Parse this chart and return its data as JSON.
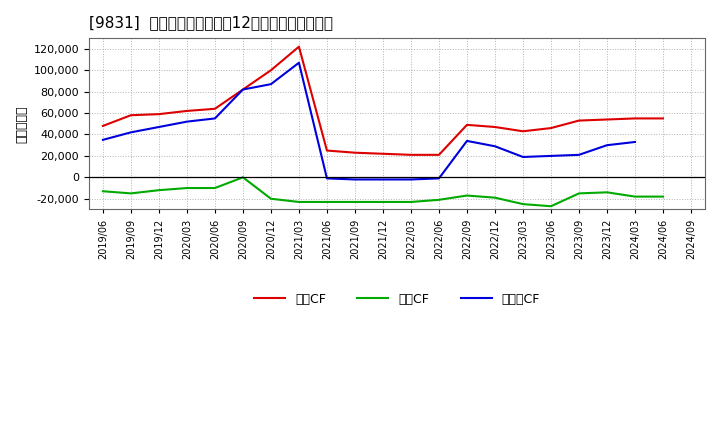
{
  "title": "[9831]  キャッシュフローの12か月移動合計の推移",
  "ylabel": "（百万円）",
  "background_color": "#ffffff",
  "plot_background": "#ffffff",
  "grid_color": "#aaaaaa",
  "dates": [
    "2019/06",
    "2019/09",
    "2019/12",
    "2020/03",
    "2020/06",
    "2020/09",
    "2020/12",
    "2021/03",
    "2021/06",
    "2021/09",
    "2021/12",
    "2022/03",
    "2022/06",
    "2022/09",
    "2022/12",
    "2023/03",
    "2023/06",
    "2023/09",
    "2023/12",
    "2024/03",
    "2024/06",
    "2024/09"
  ],
  "eigyo_cf": [
    48000,
    58000,
    59000,
    62000,
    64000,
    82000,
    100000,
    122000,
    25000,
    23000,
    22000,
    21000,
    21000,
    49000,
    47000,
    43000,
    46000,
    53000,
    54000,
    55000,
    55000,
    null
  ],
  "toshi_cf": [
    -13000,
    -15000,
    -12000,
    -10000,
    -10000,
    0,
    -20000,
    -23000,
    -23000,
    -23000,
    -23000,
    -23000,
    -21000,
    -17000,
    -19000,
    -25000,
    -27000,
    -15000,
    -14000,
    -18000,
    -18000,
    null
  ],
  "free_cf": [
    35000,
    42000,
    47000,
    52000,
    55000,
    82000,
    87000,
    107000,
    -1000,
    -2000,
    -2000,
    -2000,
    -1000,
    34000,
    29000,
    19000,
    20000,
    21000,
    30000,
    33000,
    null,
    null
  ],
  "eigyo_color": "#dd0000",
  "toshi_color": "#00aa00",
  "free_color": "#0000dd",
  "ylim": [
    -30000,
    130000
  ],
  "yticks": [
    -20000,
    0,
    20000,
    40000,
    60000,
    80000,
    100000,
    120000
  ],
  "legend_labels": [
    "営業CF",
    "投資CF",
    "フリーCF"
  ]
}
